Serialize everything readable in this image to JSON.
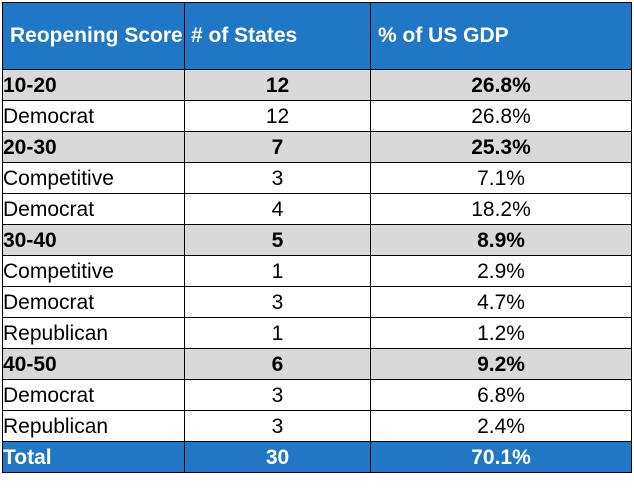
{
  "colors": {
    "header_bg": "#1f77c6",
    "group_bg": "#d9d9d9",
    "row_bg": "#ffffff",
    "header_text": "#ffffff",
    "border": "#000000"
  },
  "chart_data": {
    "type": "table",
    "headers": [
      "Reopening Score",
      "# of States",
      "% of US GDP"
    ],
    "rows": [
      {
        "kind": "group",
        "label": "10-20",
        "states": "12",
        "gdp": "26.8%"
      },
      {
        "kind": "sub",
        "label": "Democrat",
        "states": "12",
        "gdp": "26.8%"
      },
      {
        "kind": "group",
        "label": "20-30",
        "states": "7",
        "gdp": "25.3%"
      },
      {
        "kind": "sub",
        "label": "Competitive",
        "states": "3",
        "gdp": "7.1%"
      },
      {
        "kind": "sub",
        "label": "Democrat",
        "states": "4",
        "gdp": "18.2%"
      },
      {
        "kind": "group",
        "label": "30-40",
        "states": "5",
        "gdp": "8.9%"
      },
      {
        "kind": "sub",
        "label": "Competitive",
        "states": "1",
        "gdp": "2.9%"
      },
      {
        "kind": "sub",
        "label": "Democrat",
        "states": "3",
        "gdp": "4.7%"
      },
      {
        "kind": "sub",
        "label": "Republican",
        "states": "1",
        "gdp": "1.2%"
      },
      {
        "kind": "group",
        "label": "40-50",
        "states": "6",
        "gdp": "9.2%"
      },
      {
        "kind": "sub",
        "label": "Democrat",
        "states": "3",
        "gdp": "6.8%"
      },
      {
        "kind": "sub",
        "label": "Republican",
        "states": "3",
        "gdp": "2.4%"
      }
    ],
    "total": {
      "label": "Total",
      "states": "30",
      "gdp": "70.1%"
    }
  }
}
